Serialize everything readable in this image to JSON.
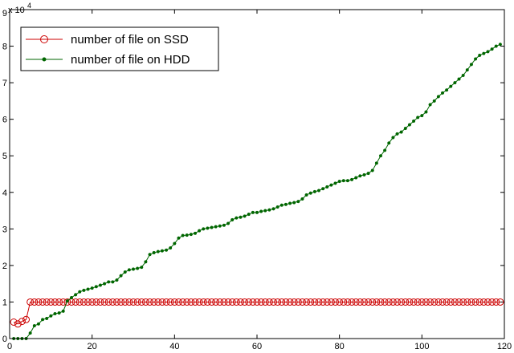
{
  "chart_data": {
    "type": "line",
    "title": "",
    "xlabel": "",
    "ylabel": "",
    "xlim": [
      0,
      120
    ],
    "ylim": [
      0,
      9
    ],
    "y_multiplier": "x 10",
    "y_multiplier_exponent": "4",
    "grid": false,
    "legend": "top-left",
    "x_ticks": [
      "0",
      "20",
      "40",
      "60",
      "80",
      "100",
      "120"
    ],
    "y_ticks": [
      "0",
      "1",
      "2",
      "3",
      "4",
      "5",
      "6",
      "7",
      "8",
      "9"
    ],
    "series": [
      {
        "name": "number of file on SSD",
        "color": "#cc0000",
        "marker": "circle",
        "x": [
          1,
          2,
          3,
          4,
          5,
          6,
          7,
          8,
          9,
          10,
          11,
          12,
          13,
          14,
          15,
          16,
          17,
          18,
          19,
          20,
          21,
          22,
          23,
          24,
          25,
          26,
          27,
          28,
          29,
          30,
          31,
          32,
          33,
          34,
          35,
          36,
          37,
          38,
          39,
          40,
          41,
          42,
          43,
          44,
          45,
          46,
          47,
          48,
          49,
          50,
          51,
          52,
          53,
          54,
          55,
          56,
          57,
          58,
          59,
          60,
          61,
          62,
          63,
          64,
          65,
          66,
          67,
          68,
          69,
          70,
          71,
          72,
          73,
          74,
          75,
          76,
          77,
          78,
          79,
          80,
          81,
          82,
          83,
          84,
          85,
          86,
          87,
          88,
          89,
          90,
          91,
          92,
          93,
          94,
          95,
          96,
          97,
          98,
          99,
          100,
          101,
          102,
          103,
          104,
          105,
          106,
          107,
          108,
          109,
          110,
          111,
          112,
          113,
          114,
          115,
          116,
          117,
          118,
          119
        ],
        "y": [
          0.45,
          0.4,
          0.47,
          0.52,
          1.0,
          1.0,
          1.0,
          1.0,
          1.0,
          1.0,
          1.0,
          1.0,
          1.0,
          1.0,
          1.0,
          1.0,
          1.0,
          1.0,
          1.0,
          1.0,
          1.0,
          1.0,
          1.0,
          1.0,
          1.0,
          1.0,
          1.0,
          1.0,
          1.0,
          1.0,
          1.0,
          1.0,
          1.0,
          1.0,
          1.0,
          1.0,
          1.0,
          1.0,
          1.0,
          1.0,
          1.0,
          1.0,
          1.0,
          1.0,
          1.0,
          1.0,
          1.0,
          1.0,
          1.0,
          1.0,
          1.0,
          1.0,
          1.0,
          1.0,
          1.0,
          1.0,
          1.0,
          1.0,
          1.0,
          1.0,
          1.0,
          1.0,
          1.0,
          1.0,
          1.0,
          1.0,
          1.0,
          1.0,
          1.0,
          1.0,
          1.0,
          1.0,
          1.0,
          1.0,
          1.0,
          1.0,
          1.0,
          1.0,
          1.0,
          1.0,
          1.0,
          1.0,
          1.0,
          1.0,
          1.0,
          1.0,
          1.0,
          1.0,
          1.0,
          1.0,
          1.0,
          1.0,
          1.0,
          1.0,
          1.0,
          1.0,
          1.0,
          1.0,
          1.0,
          1.0,
          1.0,
          1.0,
          1.0,
          1.0,
          1.0,
          1.0,
          1.0,
          1.0,
          1.0,
          1.0,
          1.0,
          1.0,
          1.0,
          1.0,
          1.0,
          1.0,
          1.0,
          1.0,
          1.0
        ]
      },
      {
        "name": "number of file on HDD",
        "color": "#006600",
        "marker": "dot",
        "x": [
          1,
          2,
          3,
          4,
          5,
          6,
          7,
          8,
          9,
          10,
          11,
          12,
          13,
          14,
          15,
          16,
          17,
          18,
          19,
          20,
          21,
          22,
          23,
          24,
          25,
          26,
          27,
          28,
          29,
          30,
          31,
          32,
          33,
          34,
          35,
          36,
          37,
          38,
          39,
          40,
          41,
          42,
          43,
          44,
          45,
          46,
          47,
          48,
          49,
          50,
          51,
          52,
          53,
          54,
          55,
          56,
          57,
          58,
          59,
          60,
          61,
          62,
          63,
          64,
          65,
          66,
          67,
          68,
          69,
          70,
          71,
          72,
          73,
          74,
          75,
          76,
          77,
          78,
          79,
          80,
          81,
          82,
          83,
          84,
          85,
          86,
          87,
          88,
          89,
          90,
          91,
          92,
          93,
          94,
          95,
          96,
          97,
          98,
          99,
          100,
          101,
          102,
          103,
          104,
          105,
          106,
          107,
          108,
          109,
          110,
          111,
          112,
          113,
          114,
          115,
          116,
          117,
          118,
          119
        ],
        "y": [
          0.0,
          0.0,
          0.0,
          0.0,
          0.15,
          0.35,
          0.4,
          0.52,
          0.55,
          0.62,
          0.68,
          0.7,
          0.75,
          1.03,
          1.12,
          1.2,
          1.28,
          1.32,
          1.35,
          1.38,
          1.42,
          1.46,
          1.5,
          1.55,
          1.55,
          1.6,
          1.72,
          1.82,
          1.88,
          1.9,
          1.92,
          1.95,
          2.1,
          2.3,
          2.35,
          2.38,
          2.4,
          2.42,
          2.48,
          2.6,
          2.75,
          2.82,
          2.83,
          2.85,
          2.88,
          2.95,
          3.0,
          3.02,
          3.04,
          3.06,
          3.08,
          3.1,
          3.15,
          3.25,
          3.3,
          3.32,
          3.35,
          3.4,
          3.45,
          3.45,
          3.48,
          3.5,
          3.52,
          3.55,
          3.6,
          3.65,
          3.67,
          3.7,
          3.72,
          3.75,
          3.82,
          3.93,
          3.98,
          4.02,
          4.05,
          4.1,
          4.15,
          4.2,
          4.25,
          4.3,
          4.32,
          4.32,
          4.35,
          4.4,
          4.45,
          4.48,
          4.52,
          4.6,
          4.8,
          5.0,
          5.15,
          5.35,
          5.5,
          5.6,
          5.65,
          5.75,
          5.85,
          5.95,
          6.05,
          6.1,
          6.2,
          6.4,
          6.5,
          6.62,
          6.72,
          6.8,
          6.9,
          7.0,
          7.1,
          7.2,
          7.35,
          7.5,
          7.65,
          7.75,
          7.8,
          7.85,
          7.92,
          8.0,
          8.05
        ]
      }
    ]
  }
}
